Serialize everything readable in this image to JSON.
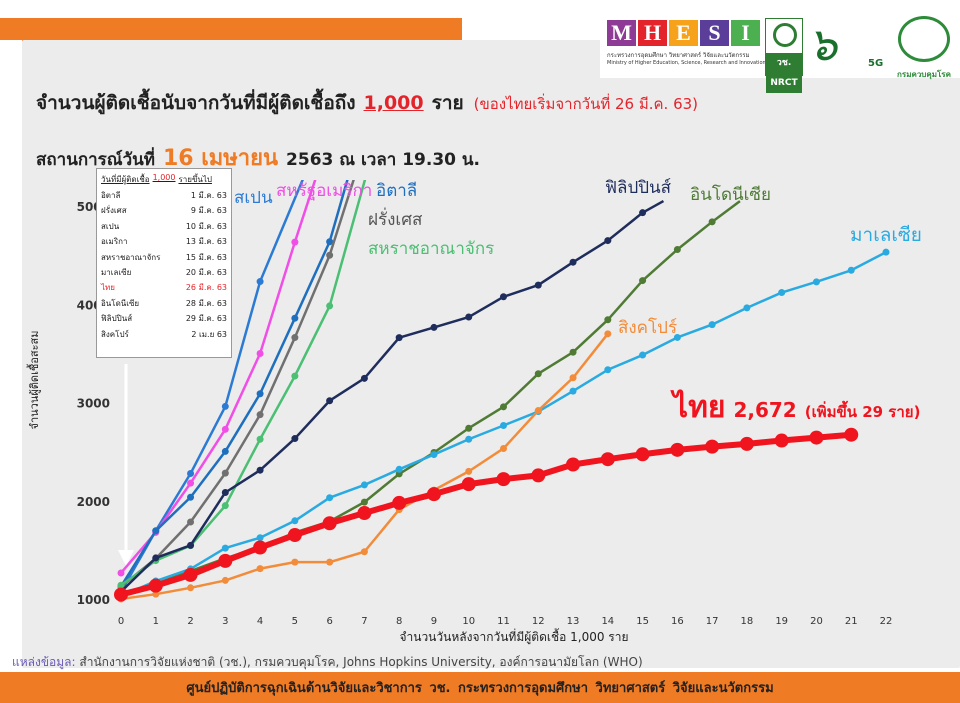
{
  "header": {
    "mhesi_letters": [
      {
        "letter": "M",
        "color": "#8e3b96"
      },
      {
        "letter": "H",
        "color": "#e4242b"
      },
      {
        "letter": "E",
        "color": "#f7a21b"
      },
      {
        "letter": "S",
        "color": "#5b3e99"
      },
      {
        "letter": "I",
        "color": "#4caf50"
      }
    ],
    "mhesi_line1": "กระทรวงการอุดมศึกษา วิทยาศาสตร์ วิจัยและนวัตกรรม",
    "mhesi_line2": "Ministry of Higher Education, Science, Research and Innovation",
    "nrct_label": "วช. NRCT",
    "v5g_mark": "๖",
    "v5g_sub": "5G",
    "moph_label": "กรมควบคุมโรค"
  },
  "title": {
    "main": "จำนวนผู้ติดเชื้อนับจากวันที่มีผู้ติดเชื้อถึง",
    "threshold": "1,000",
    "unit": "ราย",
    "note": "(ของไทยเริ่มจากวันที่ 26 มี.ค. 63)"
  },
  "situation": {
    "prefix": "สถานการณ์วันที่",
    "date": "16 เมษายน",
    "rest": "2563 ณ เวลา 19.30 น."
  },
  "start_table": {
    "header_prefix": "วันที่มีผู้ติดเชื้อ",
    "header_value": "1,000",
    "header_suffix": "รายขึ้นไป",
    "rows": [
      {
        "country": "อิตาลี",
        "date": "1 มี.ค. 63"
      },
      {
        "country": "ฝรั่งเศส",
        "date": "9 มี.ค. 63"
      },
      {
        "country": "สเปน",
        "date": "10 มี.ค. 63"
      },
      {
        "country": "อเมริกา",
        "date": "13 มี.ค. 63"
      },
      {
        "country": "สหราชอาณาจักร",
        "date": "15 มี.ค. 63"
      },
      {
        "country": "มาเลเซีย",
        "date": "20 มี.ค. 63"
      },
      {
        "country": "ไทย",
        "date": "26 มี.ค. 63"
      },
      {
        "country": "อินโดนีเซีย",
        "date": "28 มี.ค. 63"
      },
      {
        "country": "ฟิลิปปินส์",
        "date": "29 มี.ค. 63"
      },
      {
        "country": "สิงคโปร์",
        "date": "2 เม.ย 63"
      }
    ]
  },
  "chart_data": {
    "type": "line",
    "title": "จำนวนผู้ติดเชื้อนับจากวันที่มีผู้ติดเชื้อถึง 1,000 ราย",
    "xlabel": "จำนวนวันหลังจากวันที่มีผู้ติดเชื้อ 1,000 ราย",
    "ylabel": "จำนวนผู้ติดเชื้อสะสม",
    "xlim": [
      0,
      22
    ],
    "ylim": [
      1000,
      5000
    ],
    "x_ticks": [
      0,
      1,
      2,
      3,
      4,
      5,
      6,
      7,
      8,
      9,
      10,
      11,
      12,
      13,
      14,
      15,
      16,
      17,
      18,
      19,
      20,
      21,
      22
    ],
    "y_ticks": [
      1000,
      2000,
      3000,
      4000,
      5000
    ],
    "grid": false,
    "series": [
      {
        "name": "สเปน",
        "color": "#2b7bd4",
        "width": 2.5,
        "marker": 3.5,
        "points": [
          [
            0,
            1073
          ],
          [
            1,
            1695
          ],
          [
            2,
            2277
          ],
          [
            3,
            2960
          ],
          [
            4,
            4231
          ],
          [
            5.5,
            5500
          ]
        ]
      },
      {
        "name": "สหรัฐอเมริกา",
        "color": "#f04ee6",
        "width": 2.5,
        "marker": 3.5,
        "points": [
          [
            0,
            1265
          ],
          [
            1,
            1678
          ],
          [
            2,
            2179
          ],
          [
            3,
            2727
          ],
          [
            4,
            3499
          ],
          [
            5,
            4632
          ],
          [
            5.8,
            5500
          ]
        ]
      },
      {
        "name": "อิตาลี",
        "color": "#1f6fbf",
        "width": 2.5,
        "marker": 3.5,
        "points": [
          [
            0,
            1128
          ],
          [
            1,
            1694
          ],
          [
            2,
            2036
          ],
          [
            3,
            2502
          ],
          [
            4,
            3089
          ],
          [
            5,
            3858
          ],
          [
            6,
            4636
          ],
          [
            6.7,
            5500
          ]
        ]
      },
      {
        "name": "ฝรั่งเศส",
        "color": "#707070",
        "width": 2.5,
        "marker": 3.5,
        "points": [
          [
            0,
            1126
          ],
          [
            1,
            1412
          ],
          [
            2,
            1784
          ],
          [
            3,
            2281
          ],
          [
            4,
            2876
          ],
          [
            5,
            3661
          ],
          [
            6,
            4499
          ],
          [
            6.9,
            5500
          ]
        ]
      },
      {
        "name": "สหราชอาณาจักร",
        "color": "#4bbf73",
        "width": 2.5,
        "marker": 3.5,
        "points": [
          [
            0,
            1140
          ],
          [
            1,
            1391
          ],
          [
            2,
            1543
          ],
          [
            3,
            1950
          ],
          [
            4,
            2626
          ],
          [
            5,
            3269
          ],
          [
            6,
            3983
          ],
          [
            7.2,
            5500
          ]
        ]
      },
      {
        "name": "ฟิลิปปินส์",
        "color": "#1f2d5c",
        "width": 2.5,
        "marker": 3.5,
        "points": [
          [
            0,
            1075
          ],
          [
            1,
            1418
          ],
          [
            2,
            1546
          ],
          [
            3,
            2084
          ],
          [
            4,
            2311
          ],
          [
            5,
            2633
          ],
          [
            6,
            3018
          ],
          [
            7,
            3246
          ],
          [
            8,
            3660
          ],
          [
            9,
            3764
          ],
          [
            10,
            3870
          ],
          [
            11,
            4076
          ],
          [
            12,
            4195
          ],
          [
            13,
            4428
          ],
          [
            14,
            4648
          ],
          [
            15,
            4932
          ],
          [
            15.6,
            5050
          ]
        ]
      },
      {
        "name": "อินโดนีเซีย",
        "color": "#4f7b35",
        "width": 2.5,
        "marker": 3.5,
        "points": [
          [
            0,
            1046
          ],
          [
            1,
            1155
          ],
          [
            2,
            1285
          ],
          [
            3,
            1414
          ],
          [
            4,
            1528
          ],
          [
            5,
            1677
          ],
          [
            6,
            1790
          ],
          [
            7,
            1986
          ],
          [
            8,
            2273
          ],
          [
            9,
            2491
          ],
          [
            10,
            2738
          ],
          [
            11,
            2956
          ],
          [
            12,
            3293
          ],
          [
            13,
            3512
          ],
          [
            14,
            3842
          ],
          [
            15,
            4241
          ],
          [
            16,
            4557
          ],
          [
            17,
            4839
          ],
          [
            17.8,
            5050
          ]
        ]
      },
      {
        "name": "มาเลเซีย",
        "color": "#29aae1",
        "width": 2.5,
        "marker": 3.5,
        "points": [
          [
            0,
            1030
          ],
          [
            1,
            1183
          ],
          [
            2,
            1306
          ],
          [
            3,
            1518
          ],
          [
            4,
            1624
          ],
          [
            5,
            1796
          ],
          [
            6,
            2031
          ],
          [
            7,
            2161
          ],
          [
            8,
            2320
          ],
          [
            9,
            2470
          ],
          [
            10,
            2626
          ],
          [
            11,
            2766
          ],
          [
            12,
            2908
          ],
          [
            13,
            3116
          ],
          [
            14,
            3333
          ],
          [
            15,
            3483
          ],
          [
            16,
            3662
          ],
          [
            17,
            3793
          ],
          [
            18,
            3963
          ],
          [
            19,
            4119
          ],
          [
            20,
            4228
          ],
          [
            21,
            4346
          ],
          [
            22,
            4530
          ]
        ]
      },
      {
        "name": "สิงคโปร์",
        "color": "#f28c3a",
        "width": 2.5,
        "marker": 3.5,
        "points": [
          [
            0,
            1000
          ],
          [
            1,
            1049
          ],
          [
            2,
            1114
          ],
          [
            3,
            1189
          ],
          [
            4,
            1309
          ],
          [
            5,
            1375
          ],
          [
            6,
            1375
          ],
          [
            7,
            1481
          ],
          [
            8,
            1910
          ],
          [
            9,
            2108
          ],
          [
            10,
            2299
          ],
          [
            11,
            2532
          ],
          [
            12,
            2918
          ],
          [
            13,
            3252
          ],
          [
            14,
            3699
          ]
        ]
      },
      {
        "name": "ไทย",
        "color": "#f0141e",
        "width": 6,
        "marker": 7,
        "points": [
          [
            0,
            1045
          ],
          [
            1,
            1136
          ],
          [
            2,
            1245
          ],
          [
            3,
            1388
          ],
          [
            4,
            1524
          ],
          [
            5,
            1651
          ],
          [
            6,
            1771
          ],
          [
            7,
            1875
          ],
          [
            8,
            1978
          ],
          [
            9,
            2067
          ],
          [
            10,
            2169
          ],
          [
            11,
            2220
          ],
          [
            12,
            2258
          ],
          [
            13,
            2369
          ],
          [
            14,
            2423
          ],
          [
            15,
            2473
          ],
          [
            16,
            2518
          ],
          [
            17,
            2551
          ],
          [
            18,
            2579
          ],
          [
            19,
            2613
          ],
          [
            20,
            2643
          ],
          [
            21,
            2672
          ]
        ]
      }
    ],
    "labels": {
      "spain": "สเปน",
      "usa": "สหรัฐอเมริกา",
      "italy": "อิตาลี",
      "france": "ฝรั่งเศส",
      "uk": "สหราชอาณาจักร",
      "philippines": "ฟิลิปปินส์",
      "indonesia": "อินโดนีเซีย",
      "malaysia": "มาเลเซีย",
      "singapore": "สิงคโปร์",
      "thai_name": "ไทย",
      "thai_value": "2,672",
      "thai_increase": "(เพิ่มขึ้น 29 ราย)"
    }
  },
  "source": {
    "label": "แหล่งข้อมูล:",
    "text": "สำนักงานการวิจัยแห่งชาติ (วช.), กรมควบคุมโรค, Johns Hopkins University, องค์การอนามัยโลก (WHO)"
  },
  "footer": {
    "text": "ศูนย์ปฏิบัติการฉุกเฉินด้านวิจัยและวิชาการ   วช.   กระทรวงการอุดมศึกษา วิทยาศาสตร์ วิจัยและนวัตกรรม"
  }
}
